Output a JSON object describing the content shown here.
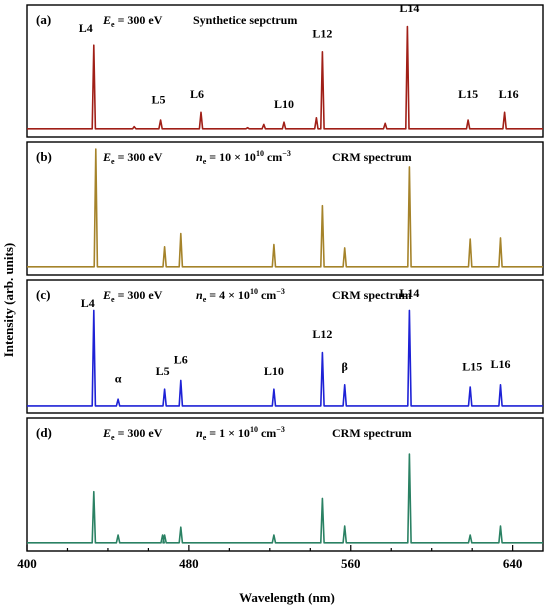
{
  "chart_data": {
    "type": "line",
    "xlabel": "Wavelength (nm)",
    "ylabel": "Intensity (arb. units)",
    "xlim": [
      400,
      655
    ],
    "xticks": [
      400,
      480,
      560,
      640
    ],
    "panels": [
      {
        "tag": "(a)",
        "energy_symbol": "E",
        "energy_sub": "e",
        "energy_value": " = 300 eV",
        "density_symbol": "",
        "density_sub": "",
        "density_value": "",
        "density_exp": "",
        "title": "Synthetice sepctrum",
        "color": "#a01f17",
        "baseline": 0.02,
        "peaks": [
          {
            "x": 433,
            "y": 0.78
          },
          {
            "x": 453,
            "y": 0.04
          },
          {
            "x": 466,
            "y": 0.1
          },
          {
            "x": 486,
            "y": 0.17
          },
          {
            "x": 509,
            "y": 0.03
          },
          {
            "x": 517,
            "y": 0.06
          },
          {
            "x": 527,
            "y": 0.08
          },
          {
            "x": 543,
            "y": 0.12
          },
          {
            "x": 546,
            "y": 0.72
          },
          {
            "x": 577,
            "y": 0.07
          },
          {
            "x": 588,
            "y": 0.95
          },
          {
            "x": 618,
            "y": 0.1
          },
          {
            "x": 636,
            "y": 0.17
          }
        ],
        "labels": [
          {
            "x": 429,
            "y": 0.9,
            "text": "L4"
          },
          {
            "x": 465,
            "y": 0.25,
            "text": "L5"
          },
          {
            "x": 484,
            "y": 0.3,
            "text": "L6"
          },
          {
            "x": 527,
            "y": 0.21,
            "text": "L10"
          },
          {
            "x": 546,
            "y": 0.85,
            "text": "L12"
          },
          {
            "x": 589,
            "y": 1.08,
            "text": "L14"
          },
          {
            "x": 618,
            "y": 0.3,
            "text": "L15"
          },
          {
            "x": 638,
            "y": 0.3,
            "text": "L16"
          }
        ]
      },
      {
        "tag": "(b)",
        "energy_symbol": "E",
        "energy_sub": "e",
        "energy_value": " = 300 eV",
        "density_symbol": "n",
        "density_sub": "e",
        "density_value": " = 10 × 10",
        "density_exp": "10",
        "density_unit": " cm",
        "density_unit_exp": "−3",
        "title": "CRM spectrum",
        "color": "#a5832a",
        "baseline": 0.02,
        "peaks": [
          {
            "x": 434,
            "y": 1.08
          },
          {
            "x": 468,
            "y": 0.2
          },
          {
            "x": 476,
            "y": 0.32
          },
          {
            "x": 522,
            "y": 0.22
          },
          {
            "x": 546,
            "y": 0.57
          },
          {
            "x": 557,
            "y": 0.19
          },
          {
            "x": 589,
            "y": 0.92
          },
          {
            "x": 619,
            "y": 0.27
          },
          {
            "x": 634,
            "y": 0.28
          }
        ],
        "labels": []
      },
      {
        "tag": "(c)",
        "energy_symbol": "E",
        "energy_sub": "e",
        "energy_value": " = 300 eV",
        "density_symbol": "n",
        "density_sub": "e",
        "density_value": " = 4 × 10",
        "density_exp": "10",
        "density_unit": " cm",
        "density_unit_exp": "−3",
        "title": "CRM spectrum",
        "color": "#1e22d6",
        "baseline": 0.01,
        "peaks": [
          {
            "x": 433,
            "y": 0.87
          },
          {
            "x": 445,
            "y": 0.07
          },
          {
            "x": 468,
            "y": 0.16
          },
          {
            "x": 476,
            "y": 0.24
          },
          {
            "x": 522,
            "y": 0.16
          },
          {
            "x": 546,
            "y": 0.49
          },
          {
            "x": 557,
            "y": 0.2
          },
          {
            "x": 589,
            "y": 0.87
          },
          {
            "x": 619,
            "y": 0.18
          },
          {
            "x": 634,
            "y": 0.2
          }
        ],
        "labels": [
          {
            "x": 430,
            "y": 0.9,
            "text": "L4"
          },
          {
            "x": 445,
            "y": 0.22,
            "text": "α"
          },
          {
            "x": 467,
            "y": 0.29,
            "text": "L5"
          },
          {
            "x": 476,
            "y": 0.39,
            "text": "L6"
          },
          {
            "x": 522,
            "y": 0.29,
            "text": "L10"
          },
          {
            "x": 546,
            "y": 0.62,
            "text": "L12"
          },
          {
            "x": 557,
            "y": 0.33,
            "text": "β"
          },
          {
            "x": 589,
            "y": 0.99,
            "text": "L14"
          },
          {
            "x": 620,
            "y": 0.33,
            "text": "L15"
          },
          {
            "x": 634,
            "y": 0.35,
            "text": "L16"
          }
        ]
      },
      {
        "tag": "(d)",
        "energy_symbol": "E",
        "energy_sub": "e",
        "energy_value": " = 300 eV",
        "density_symbol": "n",
        "density_sub": "e",
        "density_value": " = 1 × 10",
        "density_exp": "10",
        "density_unit": " cm",
        "density_unit_exp": "−3",
        "title": "CRM spectrum",
        "color": "#2a8163",
        "baseline": 0.02,
        "peaks": [
          {
            "x": 433,
            "y": 0.48
          },
          {
            "x": 445,
            "y": 0.09
          },
          {
            "x": 467,
            "y": 0.09
          },
          {
            "x": 468,
            "y": 0.09
          },
          {
            "x": 476,
            "y": 0.16
          },
          {
            "x": 522,
            "y": 0.09
          },
          {
            "x": 546,
            "y": 0.42
          },
          {
            "x": 557,
            "y": 0.17
          },
          {
            "x": 589,
            "y": 0.82
          },
          {
            "x": 619,
            "y": 0.09
          },
          {
            "x": 634,
            "y": 0.17
          }
        ],
        "labels": []
      }
    ]
  }
}
